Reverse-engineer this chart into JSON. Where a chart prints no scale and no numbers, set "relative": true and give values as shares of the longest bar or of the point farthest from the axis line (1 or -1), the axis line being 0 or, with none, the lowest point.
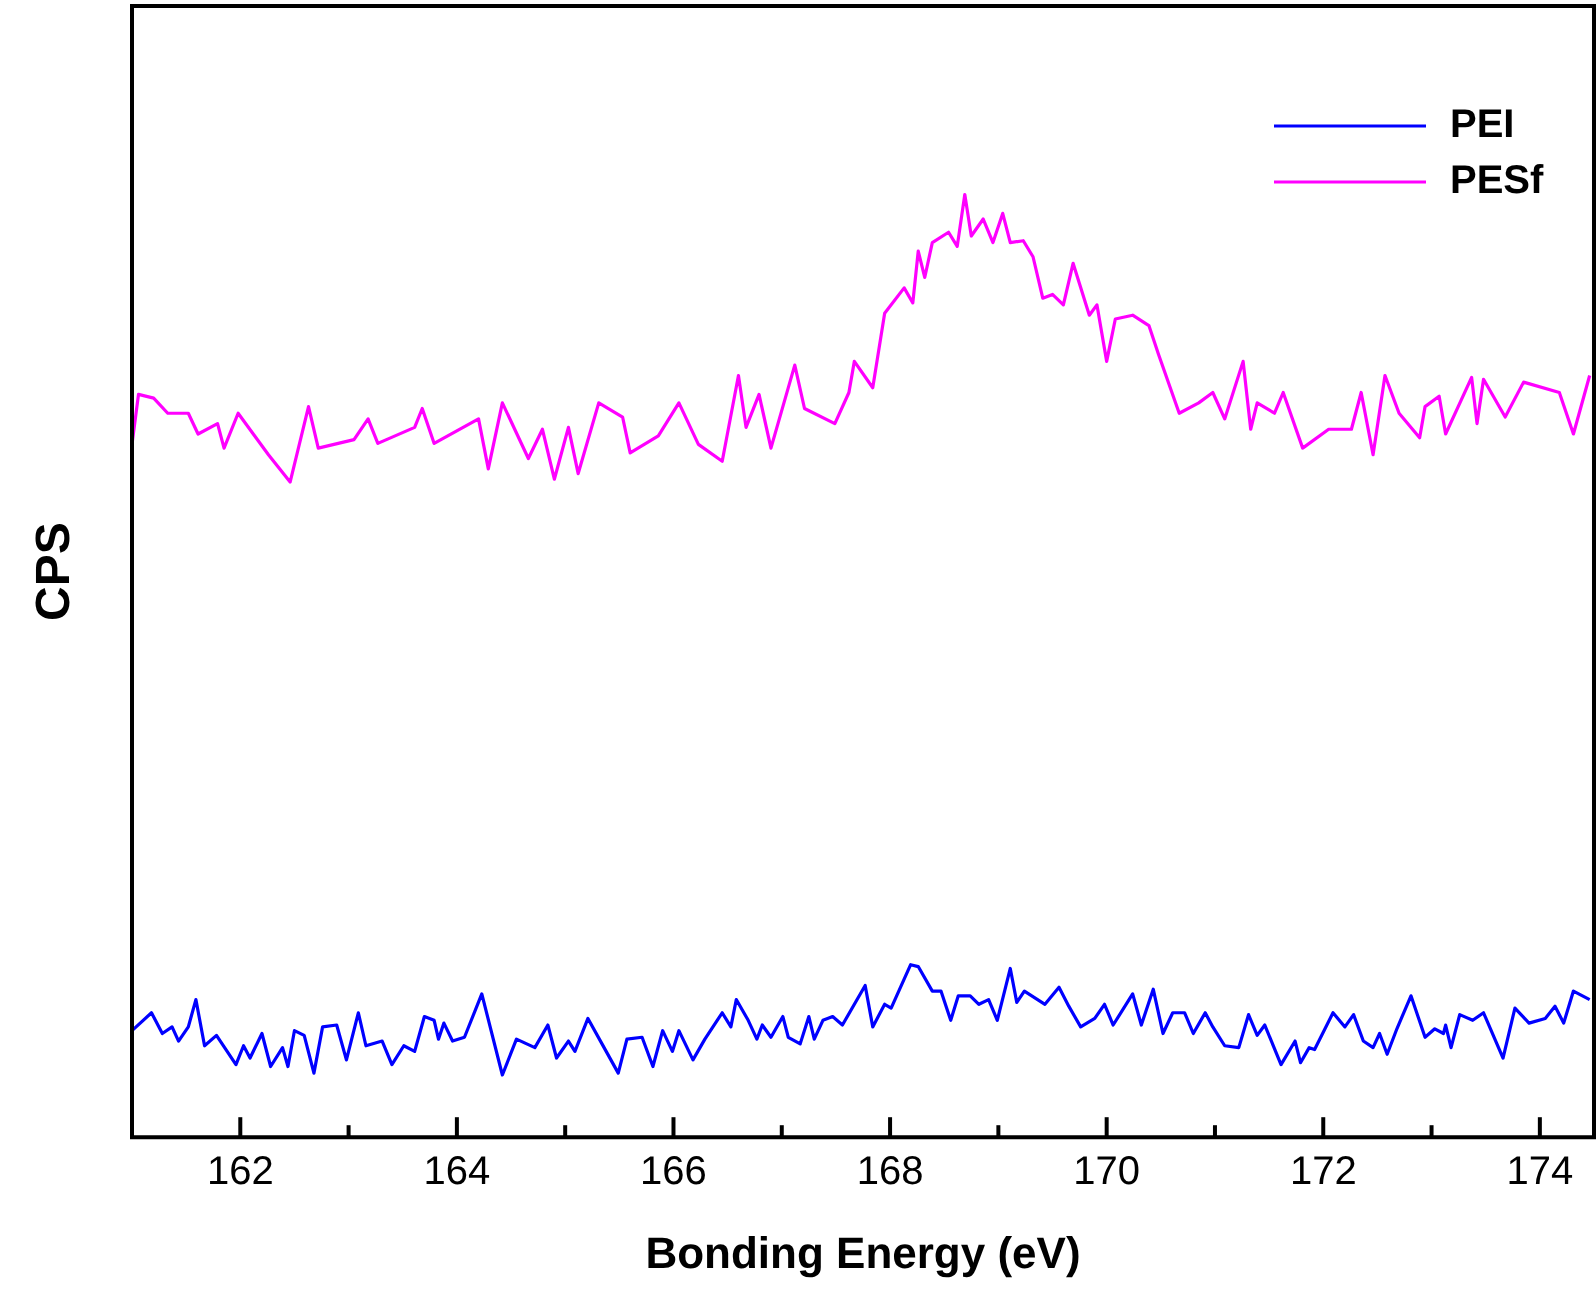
{
  "chart_data": {
    "type": "line",
    "xlabel": "Bonding Energy (eV)",
    "ylabel": "CPS",
    "relative": true,
    "legend": "top right",
    "grid": false,
    "marker": "none",
    "line_style": "solid",
    "xlim": [
      161,
      174.5
    ],
    "xticks": [
      162,
      {
        "value": 163,
        "label": null
      },
      164,
      {
        "value": 165,
        "label": null
      },
      166,
      {
        "value": 167,
        "label": null
      },
      168,
      {
        "value": 169,
        "label": null
      },
      170,
      {
        "value": 171,
        "label": null
      },
      172,
      {
        "value": 173,
        "label": null
      },
      174
    ],
    "series": [
      {
        "name": "PEI",
        "color": "#0000ff",
        "x": [
          161.0,
          161.18,
          161.28,
          161.37,
          161.43,
          161.52,
          161.59,
          161.67,
          161.78,
          161.96,
          162.03,
          162.09,
          162.2,
          162.28,
          162.39,
          162.44,
          162.5,
          162.59,
          162.68,
          162.76,
          162.89,
          162.98,
          163.09,
          163.16,
          163.31,
          163.4,
          163.51,
          163.61,
          163.7,
          163.79,
          163.83,
          163.88,
          163.96,
          164.07,
          164.23,
          164.42,
          164.55,
          164.72,
          164.84,
          164.92,
          165.03,
          165.09,
          165.21,
          165.34,
          165.49,
          165.57,
          165.71,
          165.81,
          165.9,
          165.99,
          166.05,
          166.18,
          166.29,
          166.45,
          166.53,
          166.58,
          166.69,
          166.77,
          166.82,
          166.9,
          167.01,
          167.06,
          167.17,
          167.25,
          167.3,
          167.38,
          167.47,
          167.56,
          167.77,
          167.84,
          167.95,
          168.01,
          168.19,
          168.26,
          168.39,
          168.47,
          168.56,
          168.63,
          168.74,
          168.82,
          168.91,
          168.99,
          169.11,
          169.17,
          169.24,
          169.43,
          169.56,
          169.65,
          169.76,
          169.89,
          169.98,
          170.06,
          170.24,
          170.32,
          170.43,
          170.52,
          170.61,
          170.72,
          170.8,
          170.91,
          170.98,
          171.09,
          171.22,
          171.31,
          171.39,
          171.46,
          171.61,
          171.74,
          171.79,
          171.87,
          171.92,
          172.09,
          172.2,
          172.28,
          172.37,
          172.46,
          172.52,
          172.59,
          172.68,
          172.81,
          172.94,
          173.03,
          173.11,
          173.13,
          173.18,
          173.26,
          173.38,
          173.48,
          173.66,
          173.77,
          173.9,
          174.05,
          174.14,
          174.22,
          174.31,
          174.46
        ],
        "values": [
          0.113,
          0.132,
          0.11,
          0.117,
          0.102,
          0.117,
          0.146,
          0.097,
          0.108,
          0.077,
          0.097,
          0.084,
          0.11,
          0.075,
          0.095,
          0.075,
          0.113,
          0.108,
          0.068,
          0.117,
          0.119,
          0.082,
          0.132,
          0.097,
          0.102,
          0.077,
          0.097,
          0.091,
          0.128,
          0.124,
          0.104,
          0.121,
          0.102,
          0.106,
          0.152,
          0.066,
          0.104,
          0.095,
          0.119,
          0.084,
          0.102,
          0.091,
          0.126,
          0.099,
          0.068,
          0.104,
          0.106,
          0.075,
          0.113,
          0.091,
          0.113,
          0.082,
          0.104,
          0.132,
          0.117,
          0.146,
          0.124,
          0.104,
          0.119,
          0.106,
          0.128,
          0.106,
          0.099,
          0.128,
          0.104,
          0.124,
          0.128,
          0.119,
          0.161,
          0.117,
          0.141,
          0.137,
          0.183,
          0.181,
          0.155,
          0.155,
          0.124,
          0.15,
          0.15,
          0.141,
          0.146,
          0.124,
          0.179,
          0.143,
          0.155,
          0.141,
          0.159,
          0.139,
          0.117,
          0.126,
          0.141,
          0.119,
          0.152,
          0.119,
          0.157,
          0.11,
          0.132,
          0.132,
          0.11,
          0.132,
          0.117,
          0.097,
          0.095,
          0.13,
          0.108,
          0.119,
          0.077,
          0.102,
          0.079,
          0.095,
          0.093,
          0.132,
          0.117,
          0.13,
          0.102,
          0.095,
          0.11,
          0.088,
          0.115,
          0.15,
          0.106,
          0.115,
          0.11,
          0.119,
          0.095,
          0.13,
          0.124,
          0.132,
          0.084,
          0.137,
          0.121,
          0.126,
          0.139,
          0.121,
          0.155,
          0.146
        ]
      },
      {
        "name": "PESf",
        "color": "#ff00ff",
        "x": [
          161.0,
          161.06,
          161.2,
          161.33,
          161.52,
          161.61,
          161.79,
          161.85,
          161.98,
          162.26,
          162.46,
          162.63,
          162.72,
          163.05,
          163.18,
          163.27,
          163.61,
          163.68,
          163.79,
          164.2,
          164.29,
          164.42,
          164.66,
          164.79,
          164.9,
          165.03,
          165.12,
          165.31,
          165.53,
          165.6,
          165.86,
          166.05,
          166.23,
          166.45,
          166.6,
          166.67,
          166.79,
          166.9,
          167.12,
          167.21,
          167.49,
          167.62,
          167.67,
          167.84,
          167.95,
          168.13,
          168.21,
          168.26,
          168.32,
          168.39,
          168.54,
          168.62,
          168.69,
          168.75,
          168.86,
          168.95,
          169.04,
          169.11,
          169.23,
          169.32,
          169.41,
          169.5,
          169.6,
          169.69,
          169.84,
          169.91,
          170.0,
          170.08,
          170.24,
          170.39,
          170.48,
          170.67,
          170.85,
          170.98,
          171.09,
          171.26,
          171.33,
          171.39,
          171.55,
          171.63,
          171.81,
          172.05,
          172.26,
          172.35,
          172.46,
          172.57,
          172.7,
          172.89,
          172.94,
          173.07,
          173.13,
          173.37,
          173.42,
          173.48,
          173.68,
          173.85,
          174.18,
          174.31,
          174.46
        ],
        "values": [
          0.735,
          0.788,
          0.784,
          0.768,
          0.768,
          0.746,
          0.757,
          0.731,
          0.768,
          0.724,
          0.695,
          0.775,
          0.731,
          0.74,
          0.762,
          0.736,
          0.753,
          0.773,
          0.736,
          0.762,
          0.709,
          0.779,
          0.72,
          0.751,
          0.698,
          0.753,
          0.704,
          0.779,
          0.764,
          0.726,
          0.744,
          0.779,
          0.735,
          0.717,
          0.808,
          0.753,
          0.788,
          0.731,
          0.819,
          0.773,
          0.757,
          0.79,
          0.823,
          0.795,
          0.874,
          0.901,
          0.885,
          0.94,
          0.912,
          0.949,
          0.96,
          0.945,
          1.0,
          0.956,
          0.974,
          0.949,
          0.98,
          0.949,
          0.951,
          0.934,
          0.89,
          0.894,
          0.883,
          0.927,
          0.872,
          0.883,
          0.823,
          0.868,
          0.872,
          0.861,
          0.83,
          0.768,
          0.779,
          0.79,
          0.762,
          0.823,
          0.751,
          0.779,
          0.768,
          0.79,
          0.731,
          0.751,
          0.751,
          0.79,
          0.724,
          0.808,
          0.768,
          0.742,
          0.775,
          0.786,
          0.746,
          0.806,
          0.757,
          0.804,
          0.764,
          0.801,
          0.79,
          0.746,
          0.808
        ]
      }
    ]
  }
}
